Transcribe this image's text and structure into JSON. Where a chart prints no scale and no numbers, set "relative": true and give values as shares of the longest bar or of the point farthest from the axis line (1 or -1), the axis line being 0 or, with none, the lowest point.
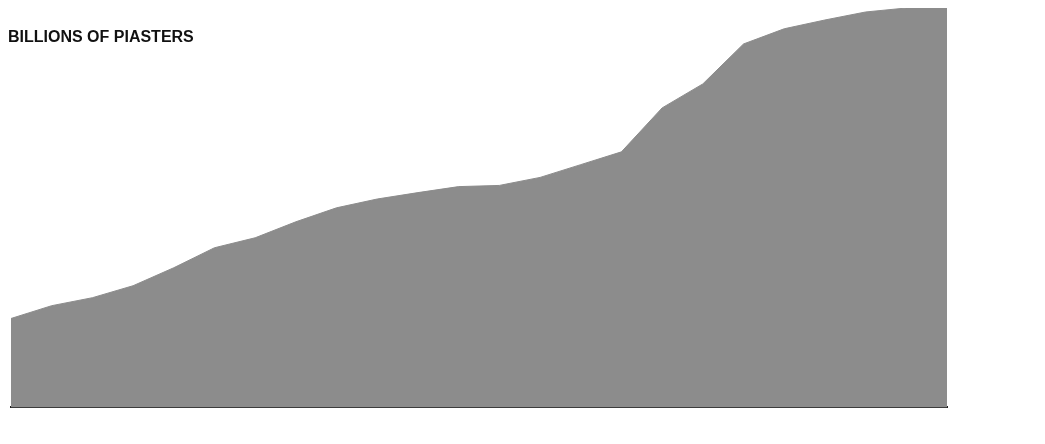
{
  "chart_data": {
    "type": "area",
    "title": "BILLIONS OF PIASTERS",
    "relative": true,
    "legend": false,
    "grid": false,
    "categories": [
      null,
      null,
      null,
      null,
      null,
      null,
      null,
      null,
      null,
      null,
      null,
      null,
      null,
      null,
      null,
      null,
      null,
      null,
      null,
      null,
      null,
      null,
      null,
      null
    ],
    "series": [
      {
        "color": "#8c8c8c",
        "values": [
          0.223,
          0.255,
          0.275,
          0.305,
          0.35,
          0.4,
          0.425,
          0.465,
          0.5,
          0.522,
          0.538,
          0.553,
          0.556,
          0.576,
          0.608,
          0.64,
          0.75,
          0.81,
          0.91,
          0.948,
          0.97,
          0.99,
          1.0,
          1.0
        ]
      }
    ]
  }
}
